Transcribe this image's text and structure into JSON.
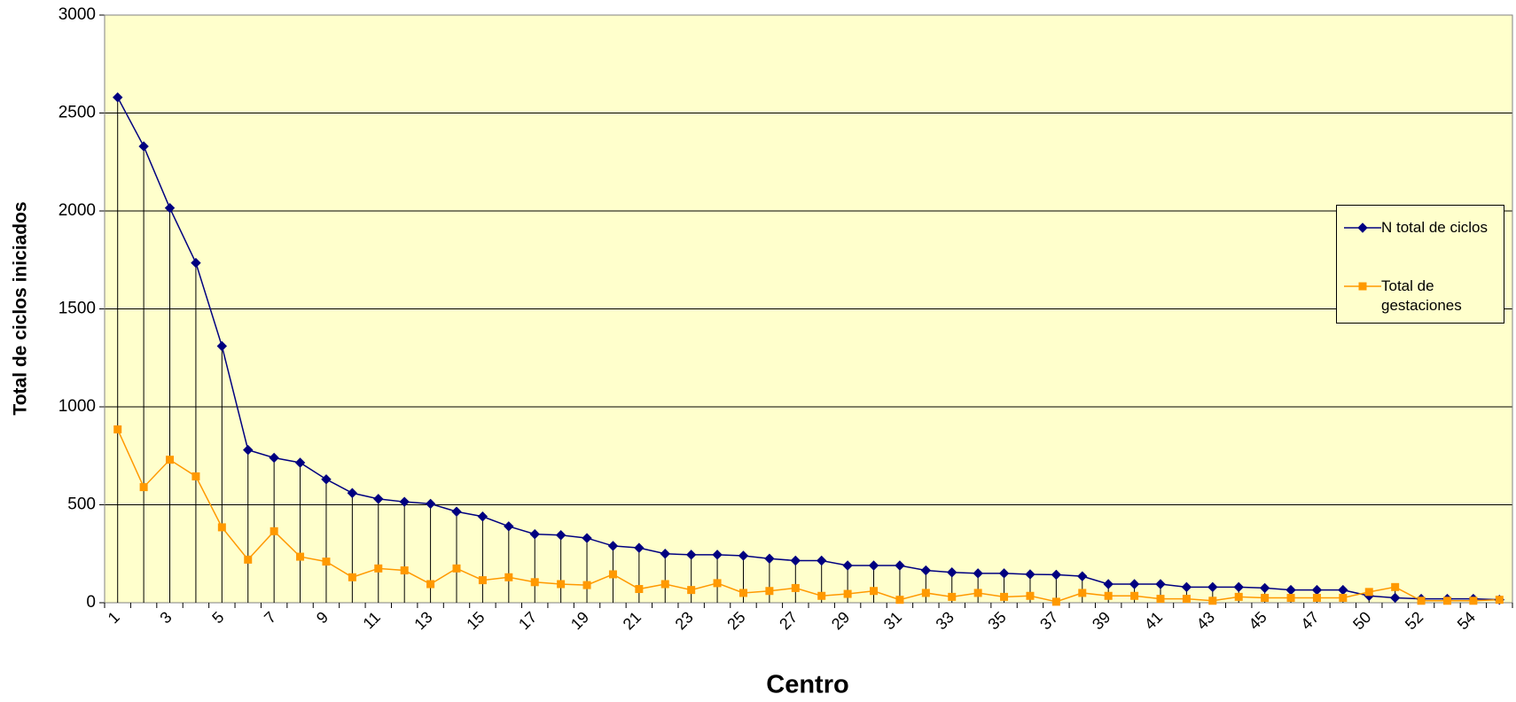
{
  "chart_data": {
    "type": "line",
    "x_label": "Centro",
    "y_label": "Total de ciclos iniciados",
    "categories": [
      "1",
      null,
      "3",
      null,
      "5",
      null,
      "7",
      null,
      "9",
      null,
      "11",
      null,
      "13",
      null,
      "15",
      null,
      "17",
      null,
      "19",
      null,
      "21",
      null,
      "23",
      null,
      "25",
      null,
      "27",
      null,
      "29",
      null,
      "31",
      null,
      "33",
      null,
      "35",
      null,
      "37",
      null,
      "39",
      null,
      "41",
      null,
      "43",
      null,
      "45",
      null,
      "47",
      null,
      "50",
      null,
      "52",
      null,
      "54",
      null
    ],
    "series": [
      {
        "name": "N total de ciclos",
        "color": "#000080",
        "marker": "diamond",
        "values": [
          2580,
          2330,
          2015,
          1735,
          1310,
          780,
          740,
          715,
          630,
          560,
          530,
          515,
          505,
          465,
          440,
          390,
          350,
          345,
          330,
          290,
          280,
          250,
          245,
          245,
          240,
          225,
          215,
          215,
          190,
          190,
          190,
          165,
          155,
          150,
          150,
          145,
          143,
          135,
          95,
          95,
          95,
          80,
          80,
          80,
          75,
          65,
          65,
          65,
          35,
          25,
          20,
          20,
          20,
          15
        ]
      },
      {
        "name": "Total de gestaciones",
        "color": "#FF9900",
        "marker": "square",
        "values": [
          885,
          590,
          730,
          645,
          385,
          220,
          365,
          235,
          210,
          130,
          175,
          165,
          95,
          175,
          115,
          130,
          105,
          95,
          90,
          145,
          70,
          95,
          65,
          100,
          50,
          60,
          75,
          35,
          45,
          60,
          15,
          50,
          30,
          50,
          30,
          35,
          5,
          50,
          35,
          35,
          20,
          20,
          10,
          30,
          25,
          25,
          25,
          25,
          55,
          80,
          10,
          10,
          10,
          15
        ]
      }
    ],
    "ylim": [
      0,
      3000
    ],
    "yticks": [
      0,
      500,
      1000,
      1500,
      2000,
      2500,
      3000
    ],
    "grid": true,
    "drop_lines": true,
    "legend": "right",
    "background": "#FFFFCC"
  }
}
